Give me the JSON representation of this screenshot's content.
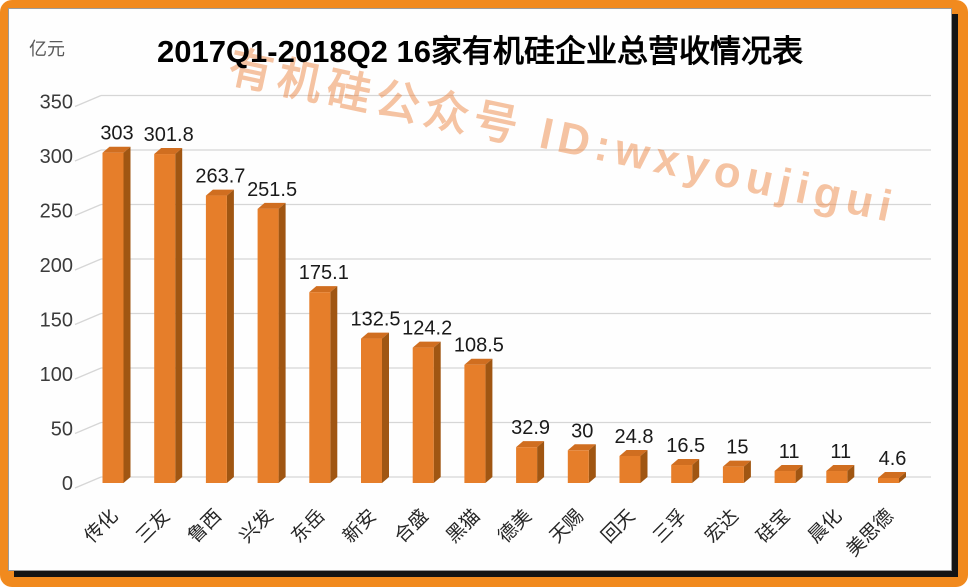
{
  "frame": {
    "border_color": "#F18A1E",
    "shadow_color": "#141414",
    "panel_bg": "#FEFEFE"
  },
  "header": {
    "title": "2017Q1-2018Q2  16家有机硅企业总营收情况表",
    "unit_label": "亿元"
  },
  "watermark": {
    "text": "有机硅公众号  ID:wxyoujigui",
    "color": "rgba(236,124,50,0.45)"
  },
  "chart_data": {
    "type": "bar",
    "style": "3d-column",
    "title": "2017Q1-2018Q2  16家有机硅企业总营收情况表",
    "xlabel": "",
    "ylabel": "亿元",
    "categories": [
      "传化",
      "三友",
      "鲁西",
      "兴发",
      "东岳",
      "新安",
      "合盛",
      "黑猫",
      "德美",
      "天赐",
      "回天",
      "三孚",
      "宏达",
      "硅宝",
      "晨化",
      "美思德"
    ],
    "values": [
      303,
      301.8,
      263.7,
      251.5,
      175.1,
      132.5,
      124.2,
      108.5,
      32.9,
      30,
      24.8,
      16.5,
      15,
      11,
      11,
      4.6
    ],
    "value_labels": [
      "303",
      "301.8",
      "263.7",
      "251.5",
      "175.1",
      "132.5",
      "124.2",
      "108.5",
      "32.9",
      "30",
      "24.8",
      "16.5",
      "15",
      "11",
      "11",
      "4.6"
    ],
    "y_ticks": [
      0,
      50,
      100,
      150,
      200,
      250,
      300,
      350
    ],
    "ylim": [
      0,
      350
    ],
    "grid": true,
    "legend": false,
    "colors": {
      "bar_front": "#E67E2A",
      "bar_top": "#D06E20",
      "bar_side": "#A05612",
      "gridline": "#D6D6D6",
      "axis_text": "#3B3B3B",
      "category_text": "#262626",
      "value_label_text": "#1A1A1A"
    }
  }
}
